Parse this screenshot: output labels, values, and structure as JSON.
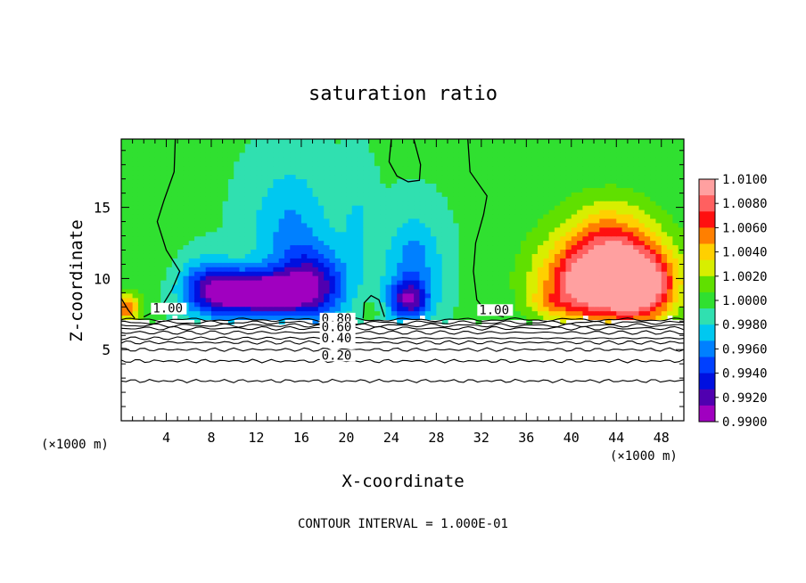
{
  "chart_data": {
    "type": "heatmap",
    "title": "saturation ratio",
    "xlabel": "X-coordinate",
    "ylabel": "Z-coordinate",
    "x_unit": "(×1000 m)",
    "z_unit": "(×1000 m)",
    "xlim": [
      0,
      50
    ],
    "ylim": [
      0,
      19.8
    ],
    "x_ticks": [
      4,
      8,
      12,
      16,
      20,
      24,
      28,
      32,
      36,
      40,
      44,
      48
    ],
    "y_ticks": [
      5,
      10,
      15
    ],
    "footnote": "CONTOUR INTERVAL = 1.000E-01",
    "colorbar": {
      "levels": [
        "1.0100",
        "1.0080",
        "1.0060",
        "1.0040",
        "1.0020",
        "1.0000",
        "0.9980",
        "0.9960",
        "0.9940",
        "0.9920",
        "0.9900"
      ],
      "colors": [
        "#ffa0a0",
        "#ff6060",
        "#ff1010",
        "#ff7f00",
        "#ffd000",
        "#d8ee00",
        "#60e000",
        "#30e030",
        "#30e0b0",
        "#00c8f0",
        "#0080ff",
        "#0040ff",
        "#0010e0",
        "#5000b0",
        "#a000c0"
      ]
    },
    "contour_labels": [
      {
        "text": "1.00",
        "x": 2.8,
        "z": 7.6
      },
      {
        "text": "1.00",
        "x": 31.8,
        "z": 7.5
      },
      {
        "text": "0.80",
        "x": 17.8,
        "z": 6.9
      },
      {
        "text": "0.60",
        "x": 17.8,
        "z": 6.3
      },
      {
        "text": "0.40",
        "x": 17.8,
        "z": 5.5
      },
      {
        "text": "0.20",
        "x": 17.8,
        "z": 4.3
      }
    ],
    "lower_contour_levels_z": [
      7.1,
      6.9,
      6.7,
      6.5,
      6.2,
      5.8,
      5.5,
      5.0,
      4.2,
      2.8
    ],
    "blobs": [
      {
        "x": 7.5,
        "z": 9.5,
        "rx": 2.5,
        "rz": 2.0,
        "value": 0.9955
      },
      {
        "x": 9.5,
        "z": 9.0,
        "rx": 3.0,
        "rz": 1.6,
        "value": 0.993
      },
      {
        "x": 13.0,
        "z": 9.0,
        "rx": 3.2,
        "rz": 1.4,
        "value": 0.9908
      },
      {
        "x": 17.0,
        "z": 9.5,
        "rx": 3.0,
        "rz": 2.5,
        "value": 0.9925
      },
      {
        "x": 15.0,
        "z": 13.5,
        "rx": 3.5,
        "rz": 4.5,
        "value": 0.9965
      },
      {
        "x": 21.0,
        "z": 14.0,
        "rx": 1.5,
        "rz": 4.0,
        "value": 0.998
      },
      {
        "x": 22.3,
        "z": 8.0,
        "rx": 1.2,
        "rz": 0.9,
        "value": 1.0004
      },
      {
        "x": 25.5,
        "z": 8.5,
        "rx": 1.8,
        "rz": 1.4,
        "value": 0.993
      },
      {
        "x": 26.0,
        "z": 11.0,
        "rx": 2.5,
        "rz": 3.5,
        "value": 0.996
      },
      {
        "x": 2.5,
        "z": 13.0,
        "rx": 2.5,
        "rz": 4.0,
        "value": 1.0004
      },
      {
        "x": 0.5,
        "z": 8.0,
        "rx": 1.2,
        "rz": 1.0,
        "value": 1.006
      },
      {
        "x": 42.0,
        "z": 9.5,
        "rx": 4.5,
        "rz": 2.5,
        "value": 1.0072
      },
      {
        "x": 43.5,
        "z": 12.5,
        "rx": 3.5,
        "rz": 3.0,
        "value": 1.0028
      },
      {
        "x": 46.5,
        "z": 9.5,
        "rx": 3.0,
        "rz": 2.5,
        "value": 1.0068
      },
      {
        "x": 43.0,
        "z": 11.0,
        "rx": 6.0,
        "rz": 4.0,
        "value": 1.004
      },
      {
        "x": 38.0,
        "z": 8.3,
        "rx": 2.0,
        "rz": 0.8,
        "value": 1.0015
      }
    ],
    "background_value": 0.9995
  }
}
